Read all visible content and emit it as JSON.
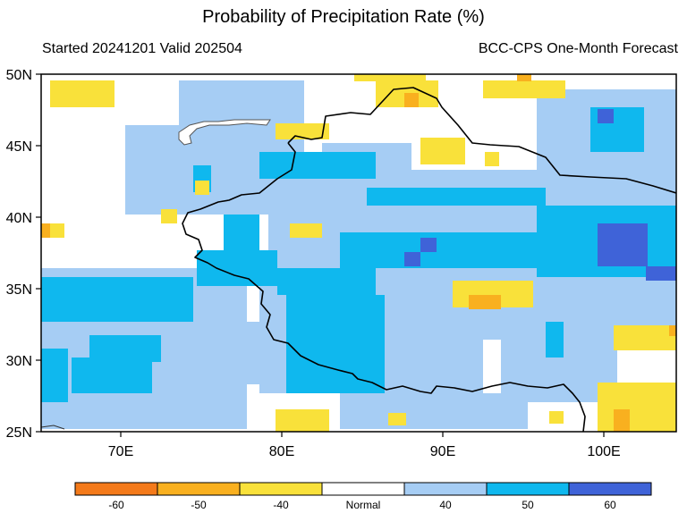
{
  "title": "Probability of Precipitation Rate (%)",
  "subtitle_left": "Started 20241201  Valid 202504",
  "subtitle_right": "BCC-CPS One-Month Forecast",
  "lat_labels": [
    "50N",
    "45N",
    "40N",
    "35N",
    "30N",
    "25N"
  ],
  "lon_labels": [
    "70E",
    "80E",
    "90E",
    "100E"
  ],
  "colorbar": {
    "colors": [
      "#f47a1a",
      "#f9b01f",
      "#f9e13a",
      "#ffffff",
      "#a6cdf4",
      "#0fb8ee",
      "#3f63d8"
    ],
    "labels": [
      "-60",
      "-50",
      "-40",
      "Normal",
      "40",
      "50",
      "60"
    ]
  },
  "colors": {
    "wet40": "#a6cdf4",
    "wet50": "#0fb8ee",
    "wet60": "#3f63d8",
    "dry40": "#f9e13a",
    "dry50": "#f9b01f",
    "dry60": "#f47a1a"
  }
}
